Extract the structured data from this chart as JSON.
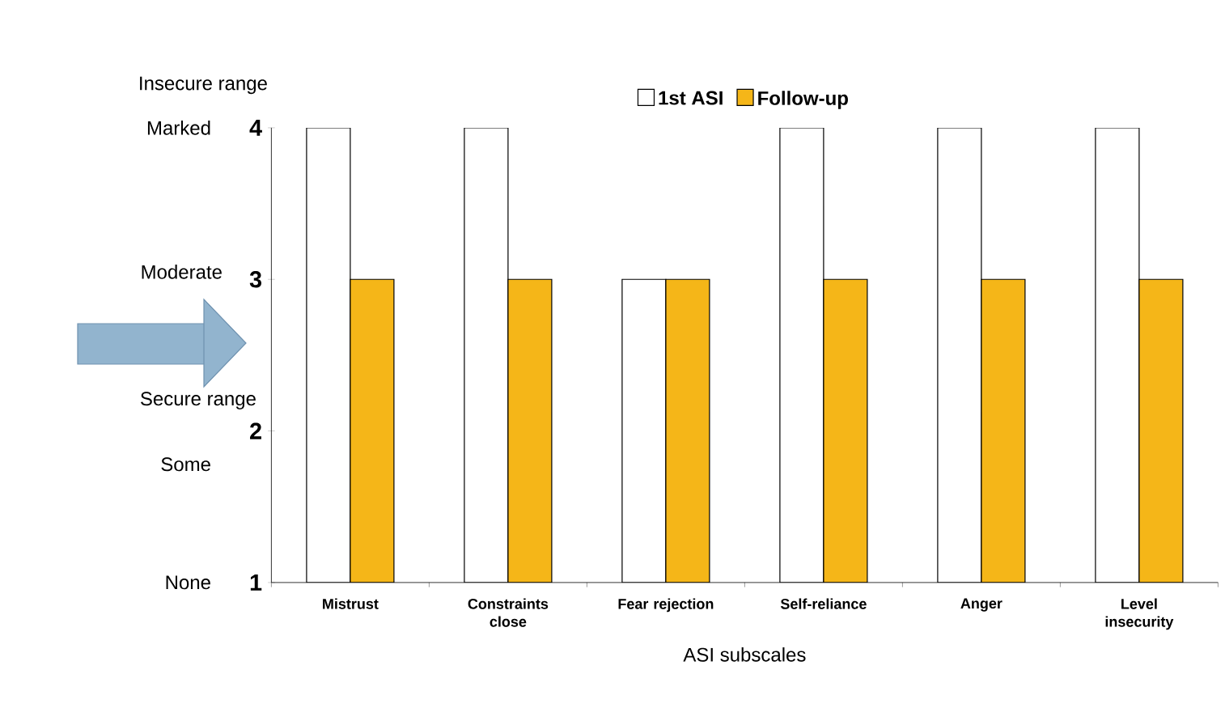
{
  "chart_data": {
    "type": "bar",
    "categories": [
      "Mistrust",
      "Constraints close",
      "Fear rejection",
      "Self-reliance",
      "Anger",
      "Level insecurity"
    ],
    "series": [
      {
        "name": "1st ASI",
        "color": "#ffffff",
        "values": [
          4,
          4,
          3,
          4,
          4,
          4
        ]
      },
      {
        "name": "Follow-up",
        "color": "#f5b618",
        "values": [
          3,
          3,
          3,
          3,
          3,
          3
        ]
      }
    ],
    "xlabel": "ASI subscales",
    "ylim": [
      1,
      4
    ],
    "yticks": [
      1,
      2,
      3,
      4
    ],
    "legend": "top",
    "annotations": [
      "Insecure range",
      "Marked",
      "Moderate",
      "Secure range",
      "Some",
      "None"
    ]
  }
}
